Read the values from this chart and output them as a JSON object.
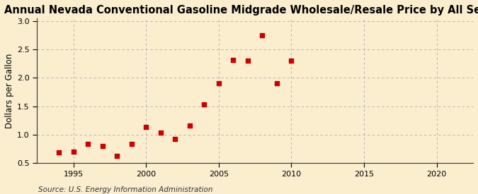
{
  "title": "Annual Nevada Conventional Gasoline Midgrade Wholesale/Resale Price by All Sellers",
  "ylabel": "Dollars per Gallon",
  "source": "Source: U.S. Energy Information Administration",
  "background_color": "#faeecf",
  "marker_color": "#cc0000",
  "years": [
    1994,
    1995,
    1996,
    1997,
    1998,
    1999,
    2000,
    2001,
    2002,
    2003,
    2004,
    2005,
    2006,
    2007,
    2008,
    2009,
    2010
  ],
  "values": [
    0.69,
    0.7,
    0.84,
    0.8,
    0.63,
    0.84,
    1.13,
    1.04,
    0.92,
    1.16,
    1.53,
    1.91,
    2.31,
    2.3,
    2.75,
    1.91,
    2.3
  ],
  "xlim": [
    1992.5,
    2022.5
  ],
  "ylim": [
    0.5,
    3.05
  ],
  "yticks": [
    0.5,
    1.0,
    1.5,
    2.0,
    2.5,
    3.0
  ],
  "xticks": [
    1995,
    2000,
    2005,
    2010,
    2015,
    2020
  ],
  "grid_color": "#aaaaaa",
  "title_fontsize": 10.5,
  "label_fontsize": 8.5,
  "tick_fontsize": 8,
  "source_fontsize": 7.5
}
